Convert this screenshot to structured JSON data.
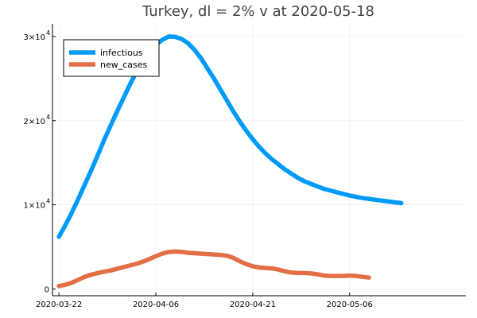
{
  "chart_data": {
    "type": "line",
    "title": "Turkey,  dl = 2% v at 2020-05-18",
    "xlabel": "",
    "ylabel": "",
    "x_start": "2020-03-22",
    "x_range": [
      "2020-03-21",
      "2020-05-24"
    ],
    "y_range": [
      -800,
      31500
    ],
    "grid": true,
    "legend_position": "top-left",
    "x_ticks": [
      {
        "date": "2020-03-22",
        "label": "2020-03-22"
      },
      {
        "date": "2020-04-06",
        "label": "2020-04-06"
      },
      {
        "date": "2020-04-21",
        "label": "2020-04-21"
      },
      {
        "date": "2020-05-06",
        "label": "2020-05-06"
      }
    ],
    "y_ticks": [
      {
        "value": 0,
        "label": "0"
      },
      {
        "value": 10000,
        "mantissa": "1×10",
        "exp": "4"
      },
      {
        "value": 20000,
        "mantissa": "2×10",
        "exp": "4"
      },
      {
        "value": 30000,
        "mantissa": "3×10",
        "exp": "4"
      }
    ],
    "series": [
      {
        "name": "infectious",
        "color": "#009AF9",
        "points": [
          [
            "2020-03-22",
            6200
          ],
          [
            "2020-03-23",
            7600
          ],
          [
            "2020-03-24",
            9100
          ],
          [
            "2020-03-25",
            10700
          ],
          [
            "2020-03-26",
            12400
          ],
          [
            "2020-03-27",
            14100
          ],
          [
            "2020-03-28",
            15900
          ],
          [
            "2020-03-29",
            17700
          ],
          [
            "2020-03-30",
            19400
          ],
          [
            "2020-03-31",
            21100
          ],
          [
            "2020-04-01",
            22700
          ],
          [
            "2020-04-02",
            24300
          ],
          [
            "2020-04-03",
            25800
          ],
          [
            "2020-04-04",
            27100
          ],
          [
            "2020-04-05",
            28200
          ],
          [
            "2020-04-06",
            29000
          ],
          [
            "2020-04-07",
            29600
          ],
          [
            "2020-04-08",
            30000
          ],
          [
            "2020-04-09",
            29950
          ],
          [
            "2020-04-10",
            29700
          ],
          [
            "2020-04-11",
            29200
          ],
          [
            "2020-04-12",
            28400
          ],
          [
            "2020-04-13",
            27400
          ],
          [
            "2020-04-14",
            26200
          ],
          [
            "2020-04-15",
            25000
          ],
          [
            "2020-04-16",
            23700
          ],
          [
            "2020-04-17",
            22400
          ],
          [
            "2020-04-18",
            21100
          ],
          [
            "2020-04-19",
            19900
          ],
          [
            "2020-04-20",
            18800
          ],
          [
            "2020-04-21",
            17800
          ],
          [
            "2020-04-22",
            16900
          ],
          [
            "2020-04-23",
            16100
          ],
          [
            "2020-04-24",
            15400
          ],
          [
            "2020-04-25",
            14800
          ],
          [
            "2020-04-26",
            14200
          ],
          [
            "2020-04-27",
            13700
          ],
          [
            "2020-04-28",
            13200
          ],
          [
            "2020-04-29",
            12800
          ],
          [
            "2020-04-30",
            12500
          ],
          [
            "2020-05-01",
            12200
          ],
          [
            "2020-05-02",
            11900
          ],
          [
            "2020-05-03",
            11700
          ],
          [
            "2020-05-04",
            11500
          ],
          [
            "2020-05-05",
            11300
          ],
          [
            "2020-05-06",
            11100
          ],
          [
            "2020-05-07",
            10950
          ],
          [
            "2020-05-08",
            10800
          ],
          [
            "2020-05-09",
            10700
          ],
          [
            "2020-05-10",
            10600
          ],
          [
            "2020-05-11",
            10500
          ],
          [
            "2020-05-12",
            10400
          ],
          [
            "2020-05-13",
            10300
          ],
          [
            "2020-05-14",
            10200
          ]
        ]
      },
      {
        "name": "new_cases",
        "color": "#E26F46",
        "points": [
          [
            "2020-03-22",
            350
          ],
          [
            "2020-03-23",
            500
          ],
          [
            "2020-03-24",
            750
          ],
          [
            "2020-03-25",
            1100
          ],
          [
            "2020-03-26",
            1450
          ],
          [
            "2020-03-27",
            1700
          ],
          [
            "2020-03-28",
            1900
          ],
          [
            "2020-03-29",
            2050
          ],
          [
            "2020-03-30",
            2200
          ],
          [
            "2020-03-31",
            2400
          ],
          [
            "2020-04-01",
            2600
          ],
          [
            "2020-04-02",
            2800
          ],
          [
            "2020-04-03",
            3000
          ],
          [
            "2020-04-04",
            3250
          ],
          [
            "2020-04-05",
            3550
          ],
          [
            "2020-04-06",
            3900
          ],
          [
            "2020-04-07",
            4200
          ],
          [
            "2020-04-08",
            4400
          ],
          [
            "2020-04-09",
            4450
          ],
          [
            "2020-04-10",
            4400
          ],
          [
            "2020-04-11",
            4300
          ],
          [
            "2020-04-12",
            4250
          ],
          [
            "2020-04-13",
            4200
          ],
          [
            "2020-04-14",
            4150
          ],
          [
            "2020-04-15",
            4100
          ],
          [
            "2020-04-16",
            4050
          ],
          [
            "2020-04-17",
            3950
          ],
          [
            "2020-04-18",
            3700
          ],
          [
            "2020-04-19",
            3300
          ],
          [
            "2020-04-20",
            2950
          ],
          [
            "2020-04-21",
            2700
          ],
          [
            "2020-04-22",
            2550
          ],
          [
            "2020-04-23",
            2500
          ],
          [
            "2020-04-24",
            2450
          ],
          [
            "2020-04-25",
            2300
          ],
          [
            "2020-04-26",
            2100
          ],
          [
            "2020-04-27",
            1950
          ],
          [
            "2020-04-28",
            1900
          ],
          [
            "2020-04-29",
            1900
          ],
          [
            "2020-04-30",
            1850
          ],
          [
            "2020-05-01",
            1750
          ],
          [
            "2020-05-02",
            1600
          ],
          [
            "2020-05-03",
            1550
          ],
          [
            "2020-05-04",
            1550
          ],
          [
            "2020-05-05",
            1550
          ],
          [
            "2020-05-06",
            1600
          ],
          [
            "2020-05-07",
            1550
          ],
          [
            "2020-05-08",
            1450
          ],
          [
            "2020-05-09",
            1350
          ]
        ]
      }
    ]
  }
}
